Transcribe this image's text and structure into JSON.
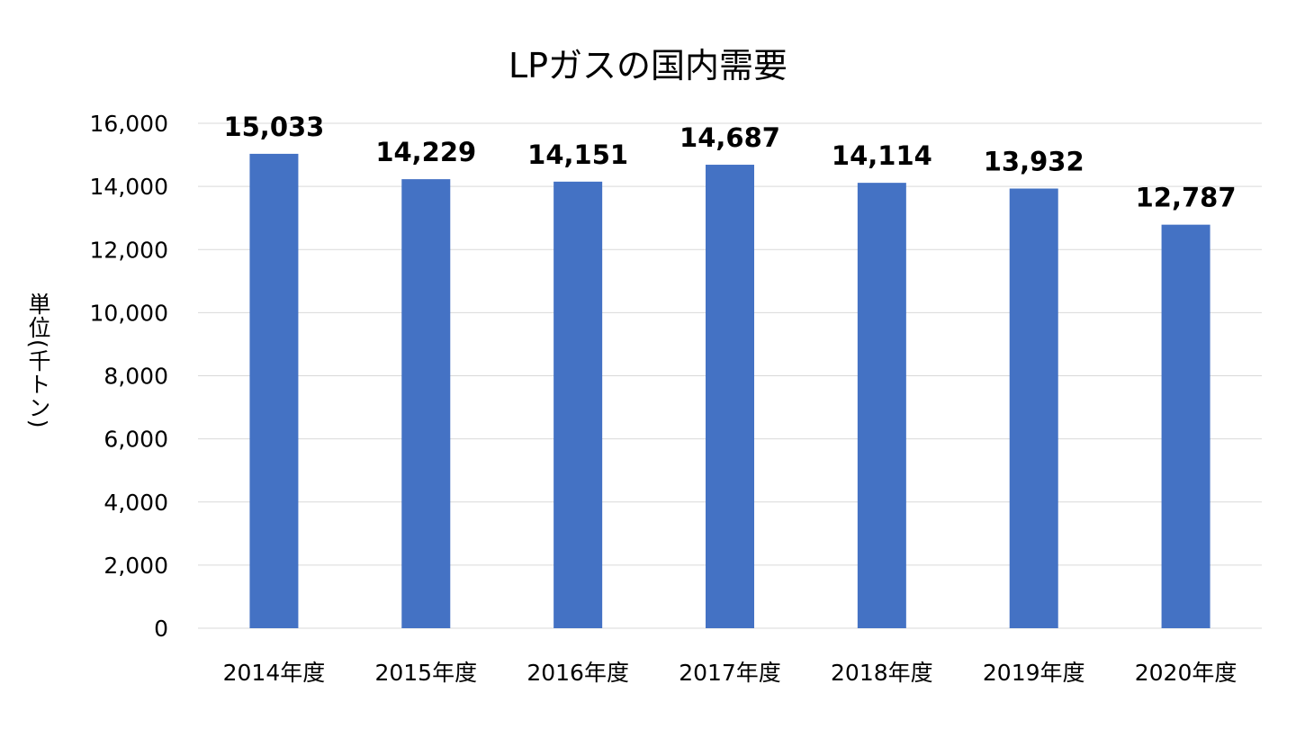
{
  "chart_data": {
    "type": "bar",
    "title": "LPガスの国内需要",
    "xlabel": "",
    "ylabel": "単位(千トン)",
    "categories": [
      "2014年度",
      "2015年度",
      "2016年度",
      "2017年度",
      "2018年度",
      "2019年度",
      "2020年度"
    ],
    "values": [
      15033,
      14229,
      14151,
      14687,
      14114,
      13932,
      12787
    ],
    "data_labels": [
      "15,033",
      "14,229",
      "14,151",
      "14,687",
      "14,114",
      "13,932",
      "12,787"
    ],
    "ylim": [
      0,
      16000
    ],
    "yticks": [
      "0",
      "2,000",
      "4,000",
      "6,000",
      "8,000",
      "10,000",
      "12,000",
      "14,000",
      "16,000"
    ],
    "grid": true,
    "bar_color": "#4472C4",
    "grid_color": "#D9D9D9"
  }
}
